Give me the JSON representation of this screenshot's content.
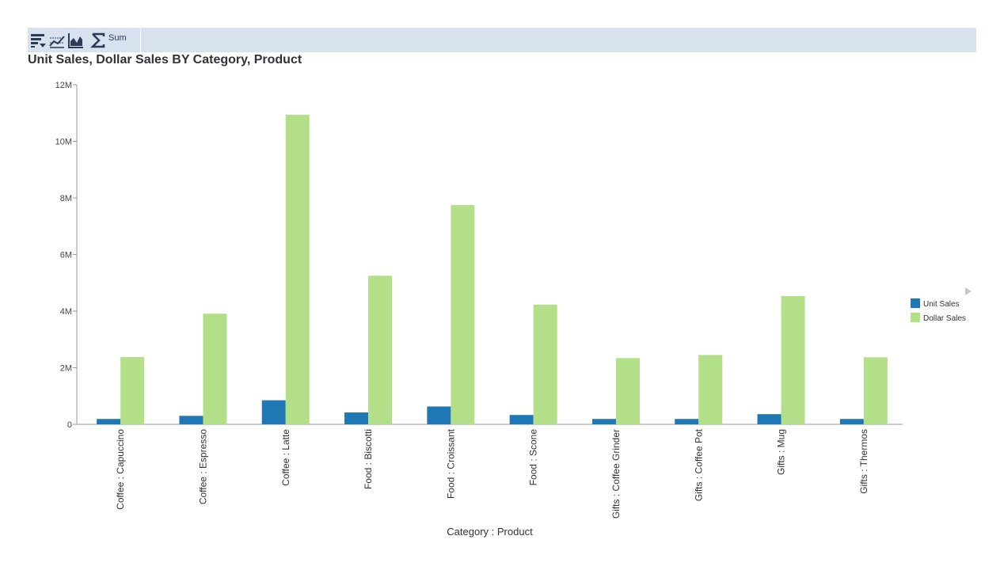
{
  "toolbar": {
    "sum_label": "Sum",
    "icons": [
      "sort-icon",
      "filter-chart-icon",
      "chart-type-icon",
      "sigma-icon"
    ]
  },
  "colors": {
    "unit_sales": "#1f77b4",
    "dollar_sales": "#b3df88",
    "toolbar_bg": "#d8e2ee"
  },
  "chart_data": {
    "type": "bar",
    "title": "Unit Sales, Dollar Sales BY Category, Product",
    "xlabel": "Category : Product",
    "ylabel": "",
    "ylim": [
      0,
      12000000
    ],
    "yticks": [
      0,
      2000000,
      4000000,
      6000000,
      8000000,
      10000000,
      12000000
    ],
    "ytick_labels": [
      "0",
      "2M",
      "4M",
      "6M",
      "8M",
      "10M",
      "12M"
    ],
    "categories": [
      "Coffee : Capuccino",
      "Coffee : Espresso",
      "Coffee : Latte",
      "Food : Biscotti",
      "Food : Croissant",
      "Food : Scone",
      "Gifts : Coffee Grinder",
      "Gifts : Coffee Pot",
      "Gifts : Mug",
      "Gifts : Thermos"
    ],
    "series": [
      {
        "name": "Unit Sales",
        "values": [
          190000,
          300000,
          850000,
          420000,
          630000,
          330000,
          190000,
          190000,
          360000,
          190000
        ]
      },
      {
        "name": "Dollar Sales",
        "values": [
          2380000,
          3910000,
          10940000,
          5250000,
          7750000,
          4230000,
          2340000,
          2450000,
          4530000,
          2370000
        ]
      }
    ],
    "legend": "right",
    "grid": false
  }
}
